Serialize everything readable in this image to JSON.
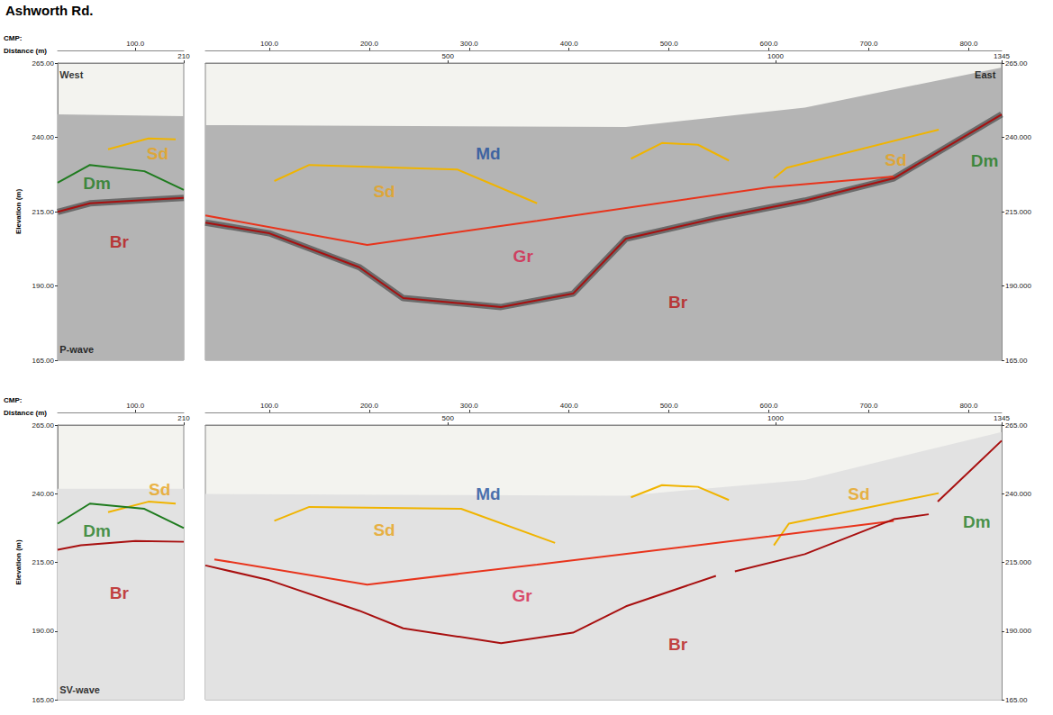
{
  "title": "Ashworth Rd.",
  "cmp_label": "CMP:",
  "distance_label": "Distance (m)",
  "elevation_label": "Elevation (m)",
  "chart_data": [
    {
      "type": "line",
      "grid": false,
      "tick_labels": true,
      "xlim": [
        23,
        148
      ],
      "xticks": [
        {
          "value": 100,
          "label": "100.0"
        }
      ],
      "x2lim": [
        19,
        210
      ],
      "x2ticks": [
        210
      ],
      "ylim": [
        165,
        265
      ],
      "yticks": [
        {
          "value": 165,
          "label": "165.00"
        },
        {
          "value": 190,
          "label": "190.00"
        },
        {
          "value": 215,
          "label": "215.00"
        },
        {
          "value": 240,
          "label": "240.00"
        },
        {
          "value": 265,
          "label": "265.00"
        }
      ],
      "series": [
        {
          "type": "area",
          "color": "#b4b4b4",
          "x": [
            23,
            148
          ],
          "values": [
            247.7,
            247.1
          ]
        },
        {
          "type": "line",
          "color": "#f0b400",
          "x": [
            73,
            113,
            140
          ],
          "values": [
            236.0,
            239.6,
            239.3
          ]
        },
        {
          "type": "line",
          "color": "#1e7b1e",
          "x": [
            23,
            55,
            109,
            148
          ],
          "values": [
            224.7,
            230.7,
            228.6,
            222.3
          ]
        },
        {
          "type": "line",
          "color": "#a81010",
          "x": [
            23,
            55,
            100,
            148
          ],
          "values": [
            214.9,
            217.8,
            218.7,
            219.6
          ]
        }
      ],
      "annotations": [
        {
          "text": "Sd",
          "x": 122,
          "y": 234.6,
          "color": "#e8a317"
        },
        {
          "text": "Dm",
          "x": 62,
          "y": 224.5,
          "color": "#1e7b1e"
        },
        {
          "text": "Br",
          "x": 84,
          "y": 204.7,
          "color": "#b81414"
        }
      ],
      "corner_labels": [
        {
          "text": "West",
          "x": 25,
          "y": 261
        },
        {
          "text": "P-wave",
          "x": 25,
          "y": 168.5
        }
      ]
    },
    {
      "type": "line",
      "grid": false,
      "tick_labels": true,
      "xlim": [
        36,
        833
      ],
      "xticks": [
        {
          "value": 100,
          "label": "100.0"
        },
        {
          "value": 200,
          "label": "200.0"
        },
        {
          "value": 300,
          "label": "300.0"
        },
        {
          "value": 400,
          "label": "400.0"
        },
        {
          "value": 500,
          "label": "500.0"
        },
        {
          "value": 600,
          "label": "600.0"
        },
        {
          "value": 700,
          "label": "700.0"
        },
        {
          "value": 800,
          "label": "800.0"
        }
      ],
      "x2lim": [
        130,
        1345
      ],
      "x2ticks": [
        500,
        1000,
        1345
      ],
      "y2lim": [
        165,
        265
      ],
      "y2ticks": [
        {
          "value": 165,
          "label": "165.00"
        },
        {
          "value": 190,
          "label": "190.000"
        },
        {
          "value": 215,
          "label": "215.000"
        },
        {
          "value": 240,
          "label": "240.000"
        },
        {
          "value": 265,
          "label": "265.00"
        }
      ],
      "series": [
        {
          "type": "area",
          "axis": "y2",
          "color": "#b4b4b4",
          "x": [
            36,
            457,
            636,
            833
          ],
          "values": [
            244.1,
            243.5,
            250.0,
            263.5
          ]
        },
        {
          "type": "line",
          "axis": "y2",
          "color": "#f0b400",
          "x": [
            105,
            140,
            288,
            368
          ],
          "values": [
            225.3,
            230.7,
            229.2,
            217.8
          ]
        },
        {
          "type": "line",
          "axis": "y2",
          "color": "#f0b400",
          "x": [
            462,
            493,
            529,
            560
          ],
          "values": [
            232.8,
            238.1,
            237.5,
            232.2
          ]
        },
        {
          "type": "line",
          "axis": "y2",
          "color": "#f0b400",
          "x": [
            605,
            618,
            770
          ],
          "values": [
            226.2,
            229.8,
            242.6
          ]
        },
        {
          "type": "line",
          "axis": "y2",
          "color": "#e8341c",
          "x": [
            36,
            198,
            368,
            600,
            725
          ],
          "values": [
            213.7,
            203.8,
            211.9,
            223.2,
            226.8
          ]
        },
        {
          "type": "line",
          "axis": "y2",
          "color": "#a81010",
          "x": [
            36,
            100,
            190,
            234,
            332,
            404,
            457,
            547,
            636,
            725,
            833
          ],
          "values": [
            211.3,
            207.7,
            196.3,
            185.9,
            182.9,
            187.4,
            205.9,
            212.8,
            218.7,
            226.2,
            247.7
          ]
        }
      ],
      "annotations": [
        {
          "text": "Md",
          "x": 319,
          "y": 234.6,
          "color": "#1f4e9c"
        },
        {
          "text": "Sd",
          "x": 215,
          "y": 221.7,
          "color": "#e8a317"
        },
        {
          "text": "Gr",
          "x": 354,
          "y": 199.9,
          "color": "#d6204a"
        },
        {
          "text": "Br",
          "x": 509,
          "y": 184.4,
          "color": "#b81414"
        },
        {
          "text": "Sd",
          "x": 727,
          "y": 232.5,
          "color": "#e8a317"
        },
        {
          "text": "Dm",
          "x": 816,
          "y": 232.2,
          "color": "#1e7b1e"
        }
      ],
      "corner_labels": [
        {
          "text": "East",
          "x": 806,
          "y": 261
        }
      ]
    },
    {
      "type": "line",
      "grid": false,
      "tick_labels": true,
      "xlim": [
        23,
        148
      ],
      "xticks": [
        {
          "value": 100,
          "label": "100.0"
        }
      ],
      "x2lim": [
        19,
        210
      ],
      "x2ticks": [
        210
      ],
      "ylim": [
        165,
        265
      ],
      "yticks": [
        {
          "value": 165,
          "label": "165.00"
        },
        {
          "value": 190,
          "label": "190.00"
        },
        {
          "value": 215,
          "label": "215.00"
        },
        {
          "value": 240,
          "label": "240.00"
        },
        {
          "value": 265,
          "label": "265.00"
        }
      ],
      "series": [
        {
          "type": "area",
          "color": "#e2e2e2",
          "x": [
            23,
            148
          ],
          "values": [
            241.8,
            241.8
          ]
        },
        {
          "type": "line",
          "color": "#f0b400",
          "x": [
            73,
            113,
            140
          ],
          "values": [
            233.3,
            237.1,
            236.4
          ]
        },
        {
          "type": "line",
          "color": "#1e7b1e",
          "x": [
            23,
            55,
            109,
            148
          ],
          "values": [
            229.1,
            236.4,
            234.5,
            227.5
          ]
        },
        {
          "type": "line",
          "color": "#a81010",
          "x": [
            23,
            46,
            100,
            148
          ],
          "values": [
            219.6,
            221.2,
            222.8,
            222.5
          ]
        }
      ],
      "annotations": [
        {
          "text": "Sd",
          "x": 124,
          "y": 241.5,
          "color": "#e8a317"
        },
        {
          "text": "Dm",
          "x": 62,
          "y": 226.5,
          "color": "#1e7b1e"
        },
        {
          "text": "Br",
          "x": 84,
          "y": 203.7,
          "color": "#b81414"
        }
      ],
      "corner_labels": [
        {
          "text": "SV-wave",
          "x": 25,
          "y": 168.5
        }
      ]
    },
    {
      "type": "line",
      "grid": false,
      "tick_labels": true,
      "xlim": [
        36,
        833
      ],
      "xticks": [
        {
          "value": 100,
          "label": "100.0"
        },
        {
          "value": 200,
          "label": "200.0"
        },
        {
          "value": 300,
          "label": "300.0"
        },
        {
          "value": 400,
          "label": "400.0"
        },
        {
          "value": 500,
          "label": "500.0"
        },
        {
          "value": 600,
          "label": "600.0"
        },
        {
          "value": 700,
          "label": "700.0"
        },
        {
          "value": 800,
          "label": "800.0"
        }
      ],
      "x2lim": [
        130,
        1345
      ],
      "x2ticks": [
        500,
        1000,
        1345
      ],
      "y2lim": [
        165,
        265
      ],
      "y2ticks": [
        {
          "value": 165,
          "label": "165.00"
        },
        {
          "value": 190,
          "label": "190.000"
        },
        {
          "value": 215,
          "label": "215.000"
        },
        {
          "value": 240,
          "label": "240.000"
        },
        {
          "value": 265,
          "label": "265.00"
        }
      ],
      "series": [
        {
          "type": "area",
          "axis": "y2",
          "color": "#e2e2e2",
          "x": [
            36,
            457,
            636,
            833
          ],
          "values": [
            239.9,
            239.3,
            245.0,
            262.5
          ]
        },
        {
          "type": "line",
          "axis": "y2",
          "color": "#f0b400",
          "x": [
            105,
            140,
            292,
            386
          ],
          "values": [
            230.1,
            235.2,
            234.5,
            222.1
          ]
        },
        {
          "type": "line",
          "axis": "y2",
          "color": "#f0b400",
          "x": [
            462,
            493,
            529,
            560
          ],
          "values": [
            238.7,
            243.1,
            242.5,
            237.7
          ]
        },
        {
          "type": "line",
          "axis": "y2",
          "color": "#f0b400",
          "x": [
            605,
            620,
            770
          ],
          "values": [
            221.2,
            229.1,
            240.2
          ]
        },
        {
          "type": "line",
          "axis": "y2",
          "color": "#e8341c",
          "x": [
            45,
            198,
            368,
            600,
            725
          ],
          "values": [
            216.1,
            206.9,
            214.2,
            224.4,
            230.1
          ]
        },
        {
          "type": "line",
          "axis": "y2",
          "color": "#a81010",
          "x": [
            36,
            100,
            190,
            234,
            332,
            404,
            457,
            547,
            556,
            566,
            636,
            725,
            760,
            765,
            769,
            833
          ],
          "values": [
            213.9,
            208.5,
            197.4,
            191.0,
            185.6,
            189.4,
            199.0,
            210.1,
            null,
            211.7,
            218.0,
            230.7,
            232.5,
            null,
            237.1,
            259.3
          ]
        }
      ],
      "annotations": [
        {
          "text": "Md",
          "x": 319,
          "y": 240.0,
          "color": "#1f4e9c"
        },
        {
          "text": "Sd",
          "x": 215,
          "y": 226.9,
          "color": "#e8a317"
        },
        {
          "text": "Gr",
          "x": 353,
          "y": 202.8,
          "color": "#d6204a"
        },
        {
          "text": "Br",
          "x": 509,
          "y": 185.3,
          "color": "#b81414"
        },
        {
          "text": "Sd",
          "x": 690,
          "y": 240.0,
          "color": "#e8a317"
        },
        {
          "text": "Dm",
          "x": 808,
          "y": 229.8,
          "color": "#1e7b1e"
        }
      ],
      "corner_labels": []
    }
  ]
}
